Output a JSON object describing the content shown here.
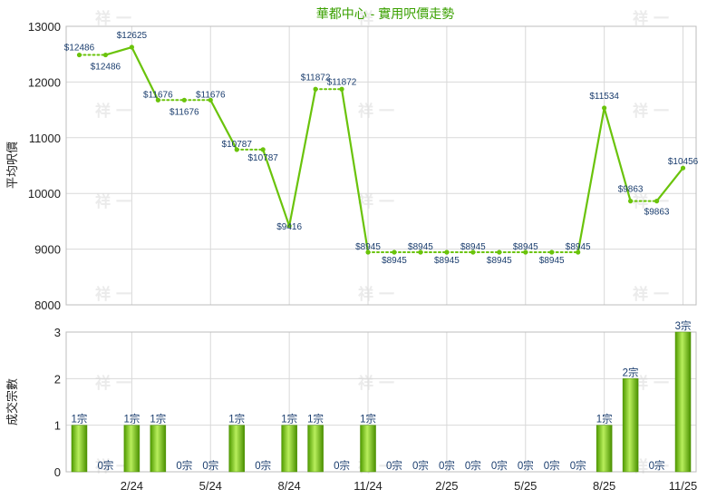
{
  "chart_data": [
    {
      "type": "line",
      "title": "華都中心 - 實用呎價走勢",
      "ylabel": "平均呎價",
      "ylim": [
        8000,
        13000
      ],
      "yticks": [
        8000,
        9000,
        10000,
        11000,
        12000,
        13000
      ],
      "grid": true,
      "line_color": "#6ac30b",
      "label_prefix": "$",
      "values": [
        12486,
        12486,
        12625,
        11676,
        11676,
        11676,
        10787,
        10787,
        9416,
        11872,
        11872,
        8945,
        8945,
        8945,
        8945,
        8945,
        8945,
        8945,
        8945,
        8945,
        11534,
        9863,
        9863,
        10456
      ]
    },
    {
      "type": "bar",
      "ylabel": "成交宗數",
      "ylim": [
        0,
        3
      ],
      "yticks": [
        0,
        1,
        2,
        3
      ],
      "grid": true,
      "bar_color": "#6ac30b",
      "label_suffix": "宗",
      "values": [
        1,
        0,
        1,
        1,
        0,
        0,
        1,
        0,
        1,
        1,
        0,
        1,
        0,
        0,
        0,
        0,
        0,
        0,
        0,
        0,
        1,
        2,
        0,
        3
      ],
      "x_tick_labels": [
        "2/24",
        "5/24",
        "8/24",
        "11/24",
        "2/25",
        "5/25",
        "8/25",
        "11/25"
      ]
    }
  ],
  "watermark": "祥 一"
}
